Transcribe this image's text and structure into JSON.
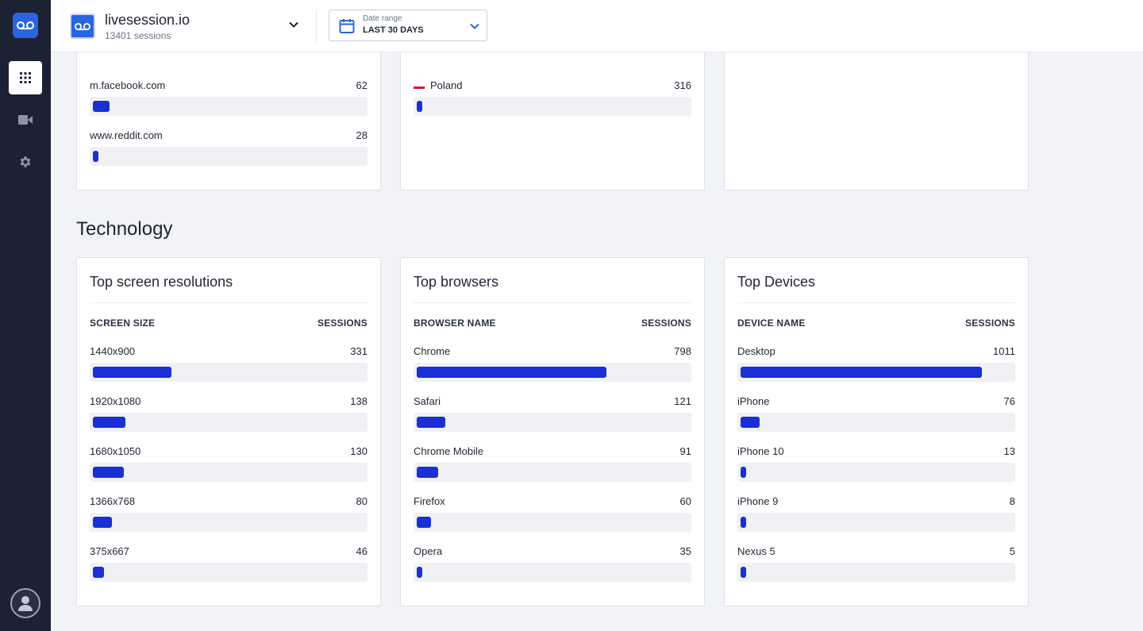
{
  "header": {
    "site_name": "livesession.io",
    "site_sessions": "13401 sessions",
    "date_range_label": "Date range",
    "date_range_value": "LAST 30 DAYS"
  },
  "sidebar": {
    "items": [
      {
        "name": "dashboard",
        "icon": "grid-icon",
        "active": true
      },
      {
        "name": "sessions",
        "icon": "video-camera-icon",
        "active": false
      },
      {
        "name": "settings",
        "icon": "gear-icon",
        "active": false
      }
    ]
  },
  "top_cards": {
    "referrers": {
      "rows": [
        {
          "label": "m.facebook.com",
          "value": "62",
          "fraction": 0.06
        },
        {
          "label": "www.reddit.com",
          "value": "28",
          "fraction": 0.02
        }
      ]
    },
    "countries": {
      "rows": [
        {
          "label": "Poland",
          "value": "316",
          "fraction": 0.02
        }
      ]
    }
  },
  "technology": {
    "title": "Technology",
    "resolutions": {
      "title": "Top screen resolutions",
      "col_left": "SCREEN SIZE",
      "col_right": "SESSIONS",
      "rows": [
        {
          "label": "1440x900",
          "value": "331",
          "fraction": 0.29
        },
        {
          "label": "1920x1080",
          "value": "138",
          "fraction": 0.12
        },
        {
          "label": "1680x1050",
          "value": "130",
          "fraction": 0.115
        },
        {
          "label": "1366x768",
          "value": "80",
          "fraction": 0.07
        },
        {
          "label": "375x667",
          "value": "46",
          "fraction": 0.04
        }
      ]
    },
    "browsers": {
      "title": "Top browsers",
      "col_left": "BROWSER NAME",
      "col_right": "SESSIONS",
      "rows": [
        {
          "label": "Chrome",
          "value": "798",
          "fraction": 0.7
        },
        {
          "label": "Safari",
          "value": "121",
          "fraction": 0.105
        },
        {
          "label": "Chrome Mobile",
          "value": "91",
          "fraction": 0.08
        },
        {
          "label": "Firefox",
          "value": "60",
          "fraction": 0.052
        },
        {
          "label": "Opera",
          "value": "35",
          "fraction": 0.02
        }
      ]
    },
    "devices": {
      "title": "Top Devices",
      "col_left": "DEVICE NAME",
      "col_right": "SESSIONS",
      "rows": [
        {
          "label": "Desktop",
          "value": "1011",
          "fraction": 0.89
        },
        {
          "label": "iPhone",
          "value": "76",
          "fraction": 0.07
        },
        {
          "label": "iPhone 10",
          "value": "13",
          "fraction": 0.02
        },
        {
          "label": "iPhone 9",
          "value": "8",
          "fraction": 0.02
        },
        {
          "label": "Nexus 5",
          "value": "5",
          "fraction": 0.02
        }
      ]
    }
  },
  "colors": {
    "bar": "#1a2fd6",
    "track": "#eff1f4",
    "sidebar": "#1c2234",
    "accent": "#2b64e3"
  }
}
